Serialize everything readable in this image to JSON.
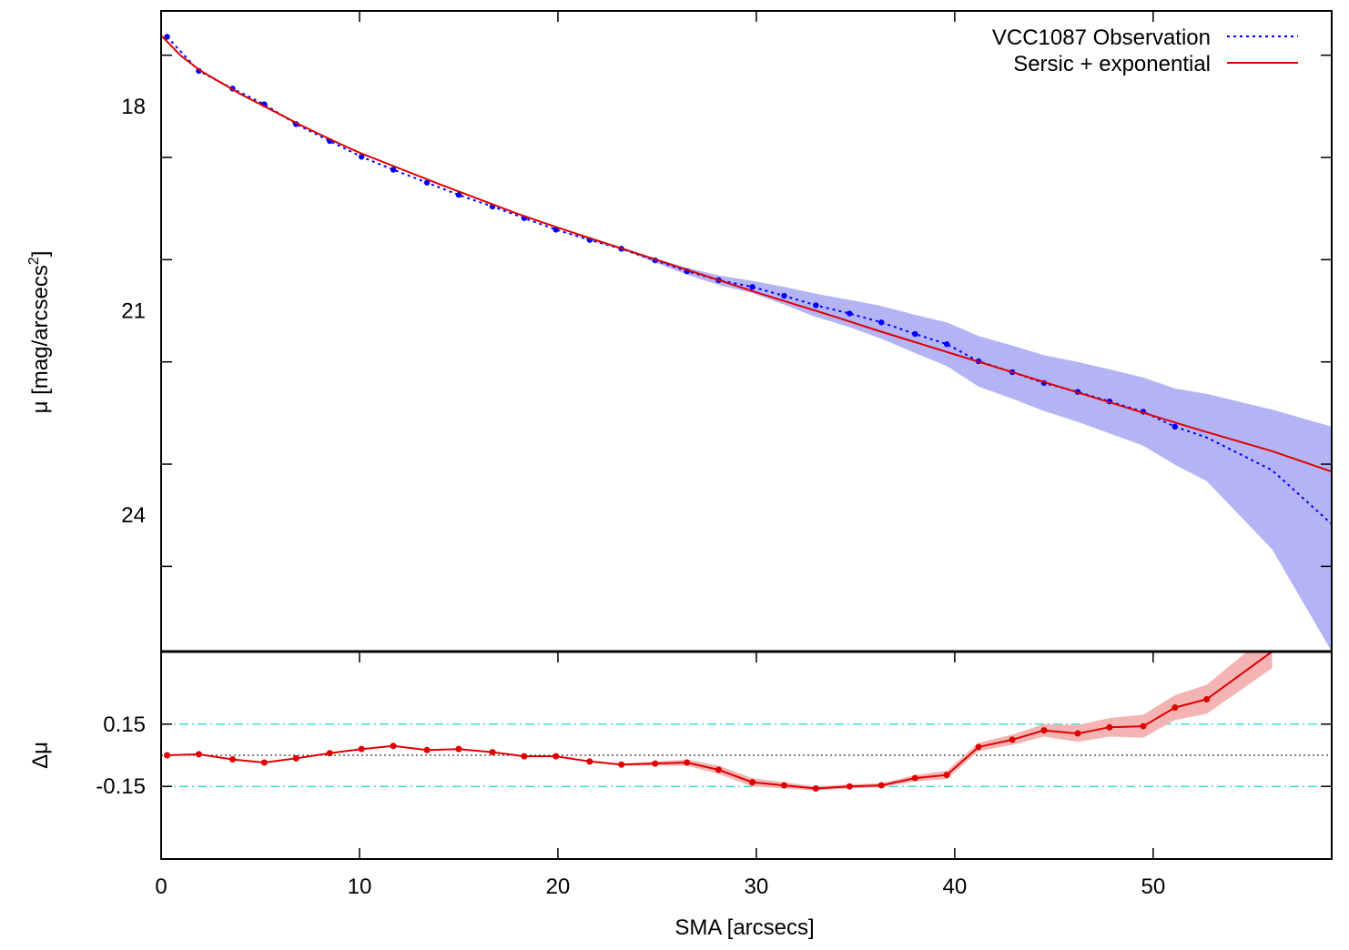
{
  "chart_data": [
    {
      "type": "line",
      "panel": "main",
      "xlabel": "SMA [arcsecs]",
      "ylabel": "μ [mag/arcsecs²]",
      "ylabel_parts": {
        "main": "μ [mag/arcsecs",
        "sup": "2",
        "tail": "]"
      },
      "xlim": [
        0,
        59
      ],
      "ylim": [
        26.0,
        16.6
      ],
      "y_inverted": true,
      "xticks": [
        0,
        10,
        20,
        30,
        40,
        50
      ],
      "xtick_labels": [
        "0",
        "10",
        "20",
        "30",
        "40",
        "50"
      ],
      "yticks": [
        18,
        21,
        24
      ],
      "ytick_labels": [
        "18",
        "21",
        "24"
      ],
      "legend_position": "top-right",
      "series": [
        {
          "name": "VCC1087 Observation",
          "style": "dotted-with-points",
          "color": "#0000ff",
          "band_color": "#b4b4f5",
          "x": [
            0.3,
            1.9,
            3.6,
            5.2,
            6.8,
            8.5,
            10.1,
            11.7,
            13.4,
            15.0,
            16.7,
            18.3,
            19.9,
            21.6,
            23.2,
            24.9,
            26.5,
            28.1,
            29.8,
            31.4,
            33.0,
            34.7,
            36.3,
            38.0,
            39.6,
            41.2,
            42.9,
            44.5,
            46.2,
            47.8,
            49.5,
            51.1,
            52.7,
            56.0,
            59.0
          ],
          "y": [
            16.98,
            17.48,
            17.74,
            17.97,
            18.26,
            18.51,
            18.74,
            18.93,
            19.12,
            19.3,
            19.47,
            19.64,
            19.81,
            19.96,
            20.09,
            20.26,
            20.42,
            20.55,
            20.65,
            20.78,
            20.92,
            21.04,
            21.17,
            21.34,
            21.49,
            21.74,
            21.9,
            22.06,
            22.19,
            22.33,
            22.48,
            22.7,
            22.86,
            23.34,
            24.13
          ],
          "y_low": [
            16.98,
            17.48,
            17.74,
            17.97,
            18.26,
            18.51,
            18.74,
            18.93,
            19.12,
            19.3,
            19.47,
            19.64,
            19.81,
            19.95,
            20.08,
            20.23,
            20.37,
            20.48,
            20.56,
            20.65,
            20.75,
            20.84,
            20.93,
            21.06,
            21.17,
            21.37,
            21.51,
            21.65,
            21.75,
            21.86,
            21.98,
            22.14,
            22.22,
            22.45,
            22.7
          ],
          "y_high": [
            16.98,
            17.48,
            17.74,
            17.97,
            18.26,
            18.51,
            18.74,
            18.93,
            19.12,
            19.3,
            19.47,
            19.64,
            19.81,
            19.97,
            20.1,
            20.29,
            20.47,
            20.62,
            20.74,
            20.91,
            21.09,
            21.24,
            21.41,
            21.62,
            21.81,
            22.11,
            22.29,
            22.47,
            22.63,
            22.8,
            22.98,
            23.26,
            23.5,
            24.5,
            26.0
          ]
        },
        {
          "name": "Sersic + exponential",
          "style": "solid",
          "color": "#e00000",
          "x": [
            0,
            1,
            2,
            3,
            4,
            5,
            6,
            7,
            8,
            9,
            10,
            12,
            14,
            16,
            18,
            20,
            22,
            24,
            26,
            28,
            30,
            32,
            34,
            36,
            38,
            40,
            42,
            44,
            46,
            48,
            50,
            52,
            54,
            56,
            58,
            59
          ],
          "y": [
            16.96,
            17.26,
            17.48,
            17.65,
            17.82,
            17.97,
            18.12,
            18.27,
            18.41,
            18.55,
            18.68,
            18.91,
            19.14,
            19.36,
            19.58,
            19.78,
            19.97,
            20.16,
            20.35,
            20.54,
            20.73,
            20.91,
            21.09,
            21.28,
            21.46,
            21.64,
            21.82,
            22.0,
            22.18,
            22.36,
            22.54,
            22.72,
            22.89,
            23.06,
            23.26,
            23.36
          ]
        }
      ]
    },
    {
      "type": "line",
      "panel": "residual",
      "ylabel": "Δμ",
      "xlim": [
        0,
        59
      ],
      "ylim": [
        -0.5,
        0.5
      ],
      "yticks": [
        0.15,
        -0.15
      ],
      "ytick_labels": [
        "0.15",
        "-0.15"
      ],
      "reference_lines": [
        {
          "y": 0.15,
          "style": "dash-dot",
          "color": "#40e0d0"
        },
        {
          "y": -0.15,
          "style": "dash-dot",
          "color": "#40e0d0"
        },
        {
          "y": 0.0,
          "style": "dotted",
          "color": "#000000"
        }
      ],
      "series": [
        {
          "name": "",
          "style": "solid-with-points",
          "color": "#e00000",
          "band_color": "#f5b4b4",
          "x": [
            0.3,
            1.9,
            3.6,
            5.2,
            6.8,
            8.5,
            10.1,
            11.7,
            13.4,
            15.0,
            16.7,
            18.3,
            19.9,
            21.6,
            23.2,
            24.9,
            26.5,
            28.1,
            29.8,
            31.4,
            33.0,
            34.7,
            36.3,
            38.0,
            39.6,
            41.2,
            42.9,
            44.5,
            46.2,
            47.8,
            49.5,
            51.1,
            52.7,
            56.0
          ],
          "y": [
            0.0,
            0.005,
            -0.02,
            -0.035,
            -0.015,
            0.01,
            0.03,
            0.045,
            0.025,
            0.03,
            0.015,
            -0.005,
            -0.005,
            -0.03,
            -0.045,
            -0.04,
            -0.035,
            -0.07,
            -0.13,
            -0.145,
            -0.16,
            -0.15,
            -0.145,
            -0.11,
            -0.095,
            0.04,
            0.075,
            0.12,
            0.105,
            0.135,
            0.14,
            0.23,
            0.27,
            0.5
          ],
          "y_low": [
            0.0,
            0.005,
            -0.02,
            -0.035,
            -0.015,
            0.01,
            0.03,
            0.045,
            0.025,
            0.03,
            0.015,
            -0.005,
            -0.005,
            -0.032,
            -0.05,
            -0.05,
            -0.05,
            -0.09,
            -0.15,
            -0.16,
            -0.17,
            -0.16,
            -0.155,
            -0.125,
            -0.115,
            0.02,
            0.05,
            0.09,
            0.065,
            0.09,
            0.085,
            0.17,
            0.2,
            0.42
          ],
          "y_high": [
            0.0,
            0.005,
            -0.02,
            -0.035,
            -0.015,
            0.01,
            0.03,
            0.045,
            0.025,
            0.03,
            0.015,
            -0.005,
            -0.005,
            -0.028,
            -0.04,
            -0.03,
            -0.02,
            -0.05,
            -0.11,
            -0.13,
            -0.15,
            -0.14,
            -0.135,
            -0.095,
            -0.075,
            0.06,
            0.1,
            0.15,
            0.145,
            0.18,
            0.195,
            0.29,
            0.34,
            0.6
          ]
        }
      ]
    }
  ]
}
